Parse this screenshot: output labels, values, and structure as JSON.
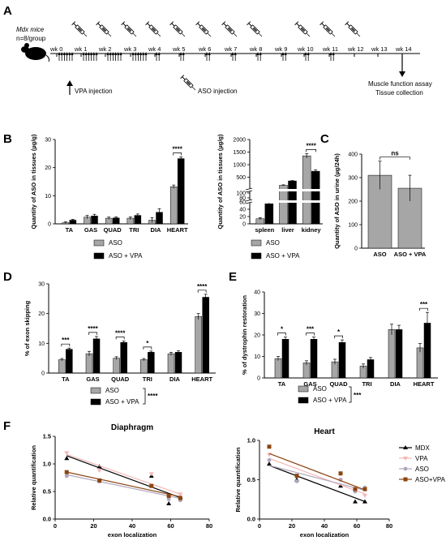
{
  "colors": {
    "aso": "#a6a6a6",
    "aso_vpa": "#000000",
    "mdx": "#000000",
    "vpa": "#f4b6b6",
    "aso_line": "#b0a6bc",
    "aso_vpa_line": "#8b4513"
  },
  "panels": {
    "a": "A",
    "b": "B",
    "c": "C",
    "d": "D",
    "e": "E",
    "f": "F"
  },
  "timeline": {
    "mouse_line1": "Mdx mice",
    "mouse_line2": "n=8/group",
    "weeks": [
      "wk 0",
      "wk 1",
      "wk 2",
      "wk 3",
      "wk 4",
      "wk 5",
      "wk 6",
      "wk 7",
      "wk 8",
      "wk 9",
      "wk 10",
      "wk 11",
      "wk 12",
      "wk 13",
      "wk 14"
    ],
    "vpa_legend": "VPA injection",
    "aso_legend": "ASO injection",
    "end_line1": "Muscle function assay",
    "end_line2": "Tissue collection",
    "icons": [
      "mouse-icon",
      "syringe-icon",
      "up-arrow-icon",
      "down-arrow-icon"
    ]
  },
  "legend": {
    "aso": "ASO",
    "aso_vpa": "ASO + VPA",
    "sig_de": "****",
    "sig_e": "***"
  },
  "chart_data": [
    {
      "id": "B1",
      "type": "bar",
      "ylabel": "Quantity of ASO in tissues (µg/g)",
      "categories": [
        "TA",
        "GAS",
        "QUAD",
        "TRI",
        "DIA",
        "HEART"
      ],
      "yticks": [
        "0",
        "10",
        "20",
        "30"
      ],
      "ylim": [
        0,
        30
      ],
      "series": [
        {
          "name": "ASO",
          "values": [
            0.4,
            2.4,
            2.0,
            2.0,
            1.3,
            13.2
          ],
          "err": [
            0.3,
            0.6,
            0.4,
            0.5,
            0.9,
            0.6
          ]
        },
        {
          "name": "ASO + VPA",
          "values": [
            1.3,
            2.8,
            2.1,
            3.0,
            4.1,
            23.2
          ],
          "err": [
            0.3,
            0.6,
            0.4,
            0.5,
            1.3,
            0.6
          ]
        }
      ],
      "sig": [
        {
          "i": 5,
          "label": "****"
        }
      ]
    },
    {
      "id": "B2",
      "type": "bar",
      "ylabel": "Quantity of ASO in tissues (µg/g)",
      "categories": [
        "spleen",
        "liver",
        "kidney"
      ],
      "yticks": [
        "0",
        "20",
        "40",
        "60",
        "80",
        "100",
        "500",
        "1000",
        "1500",
        "2000"
      ],
      "ylim": [
        0,
        2000
      ],
      "broken_axis": true,
      "series": [
        {
          "name": "ASO",
          "values": [
            14,
            180,
            1350
          ],
          "err": [
            3,
            20,
            90
          ]
        },
        {
          "name": "ASO + VPA",
          "values": [
            55,
            355,
            740
          ],
          "err": [
            5,
            15,
            50
          ]
        }
      ],
      "sig": [
        {
          "i": 2,
          "label": "****"
        }
      ]
    },
    {
      "id": "C",
      "type": "bar",
      "ylabel": "Quantity of ASO in urine (µg/24h)",
      "categories": [
        "ASO",
        "ASO + VPA"
      ],
      "yticks": [
        "0",
        "100",
        "200",
        "300",
        "400"
      ],
      "ylim": [
        0,
        400
      ],
      "series": [
        {
          "name": "",
          "values": [
            310,
            255
          ],
          "err": [
            60,
            55
          ]
        }
      ],
      "sig": [
        {
          "i": 0,
          "label": "ns"
        }
      ]
    },
    {
      "id": "D",
      "type": "bar",
      "ylabel": "% of exon skipping",
      "categories": [
        "TA",
        "GAS",
        "QUAD",
        "TRI",
        "DIA",
        "HEART"
      ],
      "yticks": [
        "0",
        "10",
        "20",
        "30"
      ],
      "ylim": [
        0,
        30
      ],
      "series": [
        {
          "name": "ASO",
          "values": [
            4.5,
            6.5,
            5.0,
            4.5,
            6.5,
            19.0
          ],
          "err": [
            0.4,
            0.8,
            0.5,
            0.4,
            0.5,
            1.0
          ]
        },
        {
          "name": "ASO + VPA",
          "values": [
            8.0,
            11.5,
            10.3,
            7.0,
            7.0,
            25.5
          ],
          "err": [
            0.4,
            0.8,
            0.5,
            0.4,
            0.5,
            1.0
          ]
        }
      ],
      "sig": [
        {
          "i": 0,
          "label": "***"
        },
        {
          "i": 1,
          "label": "****"
        },
        {
          "i": 2,
          "label": "****"
        },
        {
          "i": 3,
          "label": "*"
        },
        {
          "i": 5,
          "label": "****"
        }
      ]
    },
    {
      "id": "E",
      "type": "bar",
      "ylabel": "% of dystrophin restoration",
      "categories": [
        "TA",
        "GAS",
        "QUAD",
        "TRI",
        "DIA",
        "HEART"
      ],
      "yticks": [
        "0",
        "10",
        "20",
        "30",
        "40"
      ],
      "ylim": [
        0,
        40
      ],
      "series": [
        {
          "name": "ASO",
          "values": [
            9.0,
            7.0,
            7.5,
            5.5,
            22.5,
            14.0
          ],
          "err": [
            1.0,
            1.0,
            1.2,
            1.0,
            2.5,
            2.0
          ]
        },
        {
          "name": "ASO + VPA",
          "values": [
            18.0,
            18.0,
            16.5,
            8.5,
            22.5,
            25.5
          ],
          "err": [
            1.0,
            1.0,
            1.2,
            1.0,
            2.0,
            5.0
          ]
        }
      ],
      "sig": [
        {
          "i": 0,
          "label": "*"
        },
        {
          "i": 1,
          "label": "***"
        },
        {
          "i": 2,
          "label": "*"
        },
        {
          "i": 5,
          "label": "***"
        }
      ]
    },
    {
      "id": "F1",
      "type": "scatter",
      "title": "Diaphragm",
      "xlabel": "exon localization",
      "ylabel": "Relative quantification",
      "xticks": [
        "0",
        "20",
        "40",
        "60",
        "80"
      ],
      "yticks": [
        "0.0",
        "0.5",
        "1.0",
        "1.5"
      ],
      "xlim": [
        0,
        80
      ],
      "ylim": [
        0,
        1.5
      ],
      "series": [
        {
          "name": "MDX",
          "x": [
            6,
            23,
            50,
            59,
            65
          ],
          "y": [
            1.1,
            0.95,
            0.78,
            0.28,
            0.4
          ]
        },
        {
          "name": "VPA",
          "x": [
            6,
            23,
            50,
            59,
            65
          ],
          "y": [
            1.2,
            0.88,
            0.82,
            0.4,
            0.45
          ]
        },
        {
          "name": "ASO",
          "x": [
            6,
            23,
            50,
            59,
            65
          ],
          "y": [
            0.78,
            0.68,
            0.6,
            0.36,
            0.34
          ]
        },
        {
          "name": "ASO+VPA",
          "x": [
            6,
            23,
            50,
            59,
            65
          ],
          "y": [
            0.85,
            0.7,
            0.6,
            0.42,
            0.38
          ]
        }
      ]
    },
    {
      "id": "F2",
      "type": "scatter",
      "title": "Heart",
      "xlabel": "exon localization",
      "ylabel": "Relative quantification",
      "xticks": [
        "0",
        "20",
        "40",
        "60",
        "80"
      ],
      "yticks": [
        "0.0",
        "0.5",
        "1.0"
      ],
      "xlim": [
        0,
        80
      ],
      "ylim": [
        0,
        1.0
      ],
      "series": [
        {
          "name": "MDX",
          "x": [
            6,
            23,
            50,
            59,
            65
          ],
          "y": [
            0.7,
            0.5,
            0.42,
            0.22,
            0.22
          ]
        },
        {
          "name": "VPA",
          "x": [
            6,
            23,
            50,
            59,
            65
          ],
          "y": [
            0.82,
            0.55,
            0.5,
            0.36,
            0.3
          ]
        },
        {
          "name": "ASO",
          "x": [
            6,
            23,
            50,
            59,
            65
          ],
          "y": [
            0.75,
            0.48,
            0.5,
            0.35,
            0.4
          ]
        },
        {
          "name": "ASO+VPA",
          "x": [
            6,
            23,
            50,
            59,
            65
          ],
          "y": [
            0.92,
            0.55,
            0.58,
            0.38,
            0.38
          ]
        }
      ]
    }
  ]
}
